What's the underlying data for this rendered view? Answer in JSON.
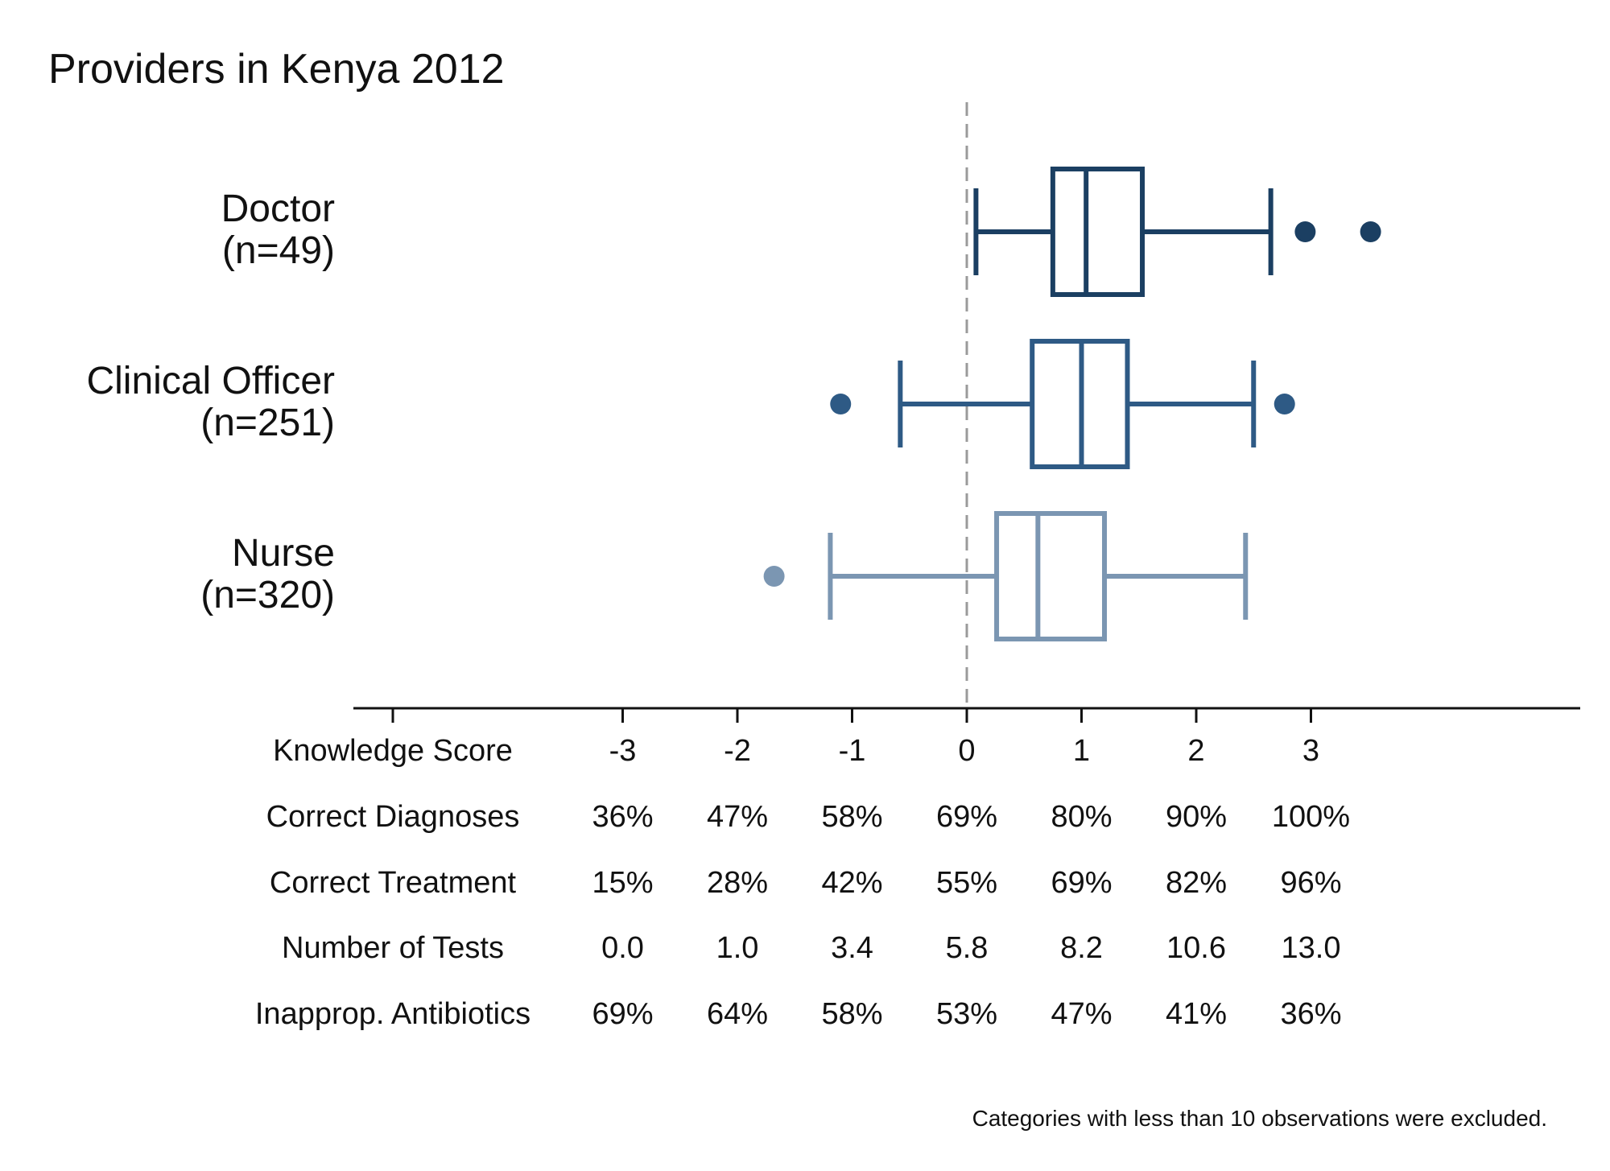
{
  "chart_data": {
    "type": "box",
    "title": "Providers in Kenya 2012",
    "xlabel": "",
    "ylabel": "",
    "x_ticks": [
      -3,
      -2,
      -1,
      0,
      1,
      2,
      3
    ],
    "reference_line_x": 0,
    "categories": [
      {
        "name": "Doctor",
        "n_label": "(n=49)",
        "color": "#1b3f62",
        "whisker_low": 0.08,
        "q1": 0.75,
        "median": 1.04,
        "q3": 1.53,
        "whisker_high": 2.65,
        "outliers": [
          2.95,
          3.52
        ]
      },
      {
        "name": "Clinical Officer",
        "n_label": "(n=251)",
        "color": "#2e5a85",
        "whisker_low": -0.58,
        "q1": 0.57,
        "median": 1.0,
        "q3": 1.4,
        "whisker_high": 2.5,
        "outliers": [
          -1.1,
          2.77
        ]
      },
      {
        "name": "Nurse",
        "n_label": "(n=320)",
        "color": "#7b96b2",
        "whisker_low": -1.19,
        "q1": 0.26,
        "median": 0.62,
        "q3": 1.2,
        "whisker_high": 2.43,
        "outliers": [
          -1.68
        ]
      }
    ],
    "table": {
      "rows": [
        {
          "label": "Knowledge Score",
          "values": [
            "-3",
            "-2",
            "-1",
            "0",
            "1",
            "2",
            "3"
          ]
        },
        {
          "label": "Correct Diagnoses",
          "values": [
            "36%",
            "47%",
            "58%",
            "69%",
            "80%",
            "90%",
            "100%"
          ]
        },
        {
          "label": "Correct Treatment",
          "values": [
            "15%",
            "28%",
            "42%",
            "55%",
            "69%",
            "82%",
            "96%"
          ]
        },
        {
          "label": "Number of Tests",
          "values": [
            "0.0",
            "1.0",
            "3.4",
            "5.8",
            "8.2",
            "10.6",
            "13.0"
          ]
        },
        {
          "label": "Inapprop. Antibiotics",
          "values": [
            "69%",
            "64%",
            "58%",
            "53%",
            "47%",
            "41%",
            "36%"
          ]
        }
      ]
    },
    "note": "Categories with less than 10 observations were excluded."
  }
}
